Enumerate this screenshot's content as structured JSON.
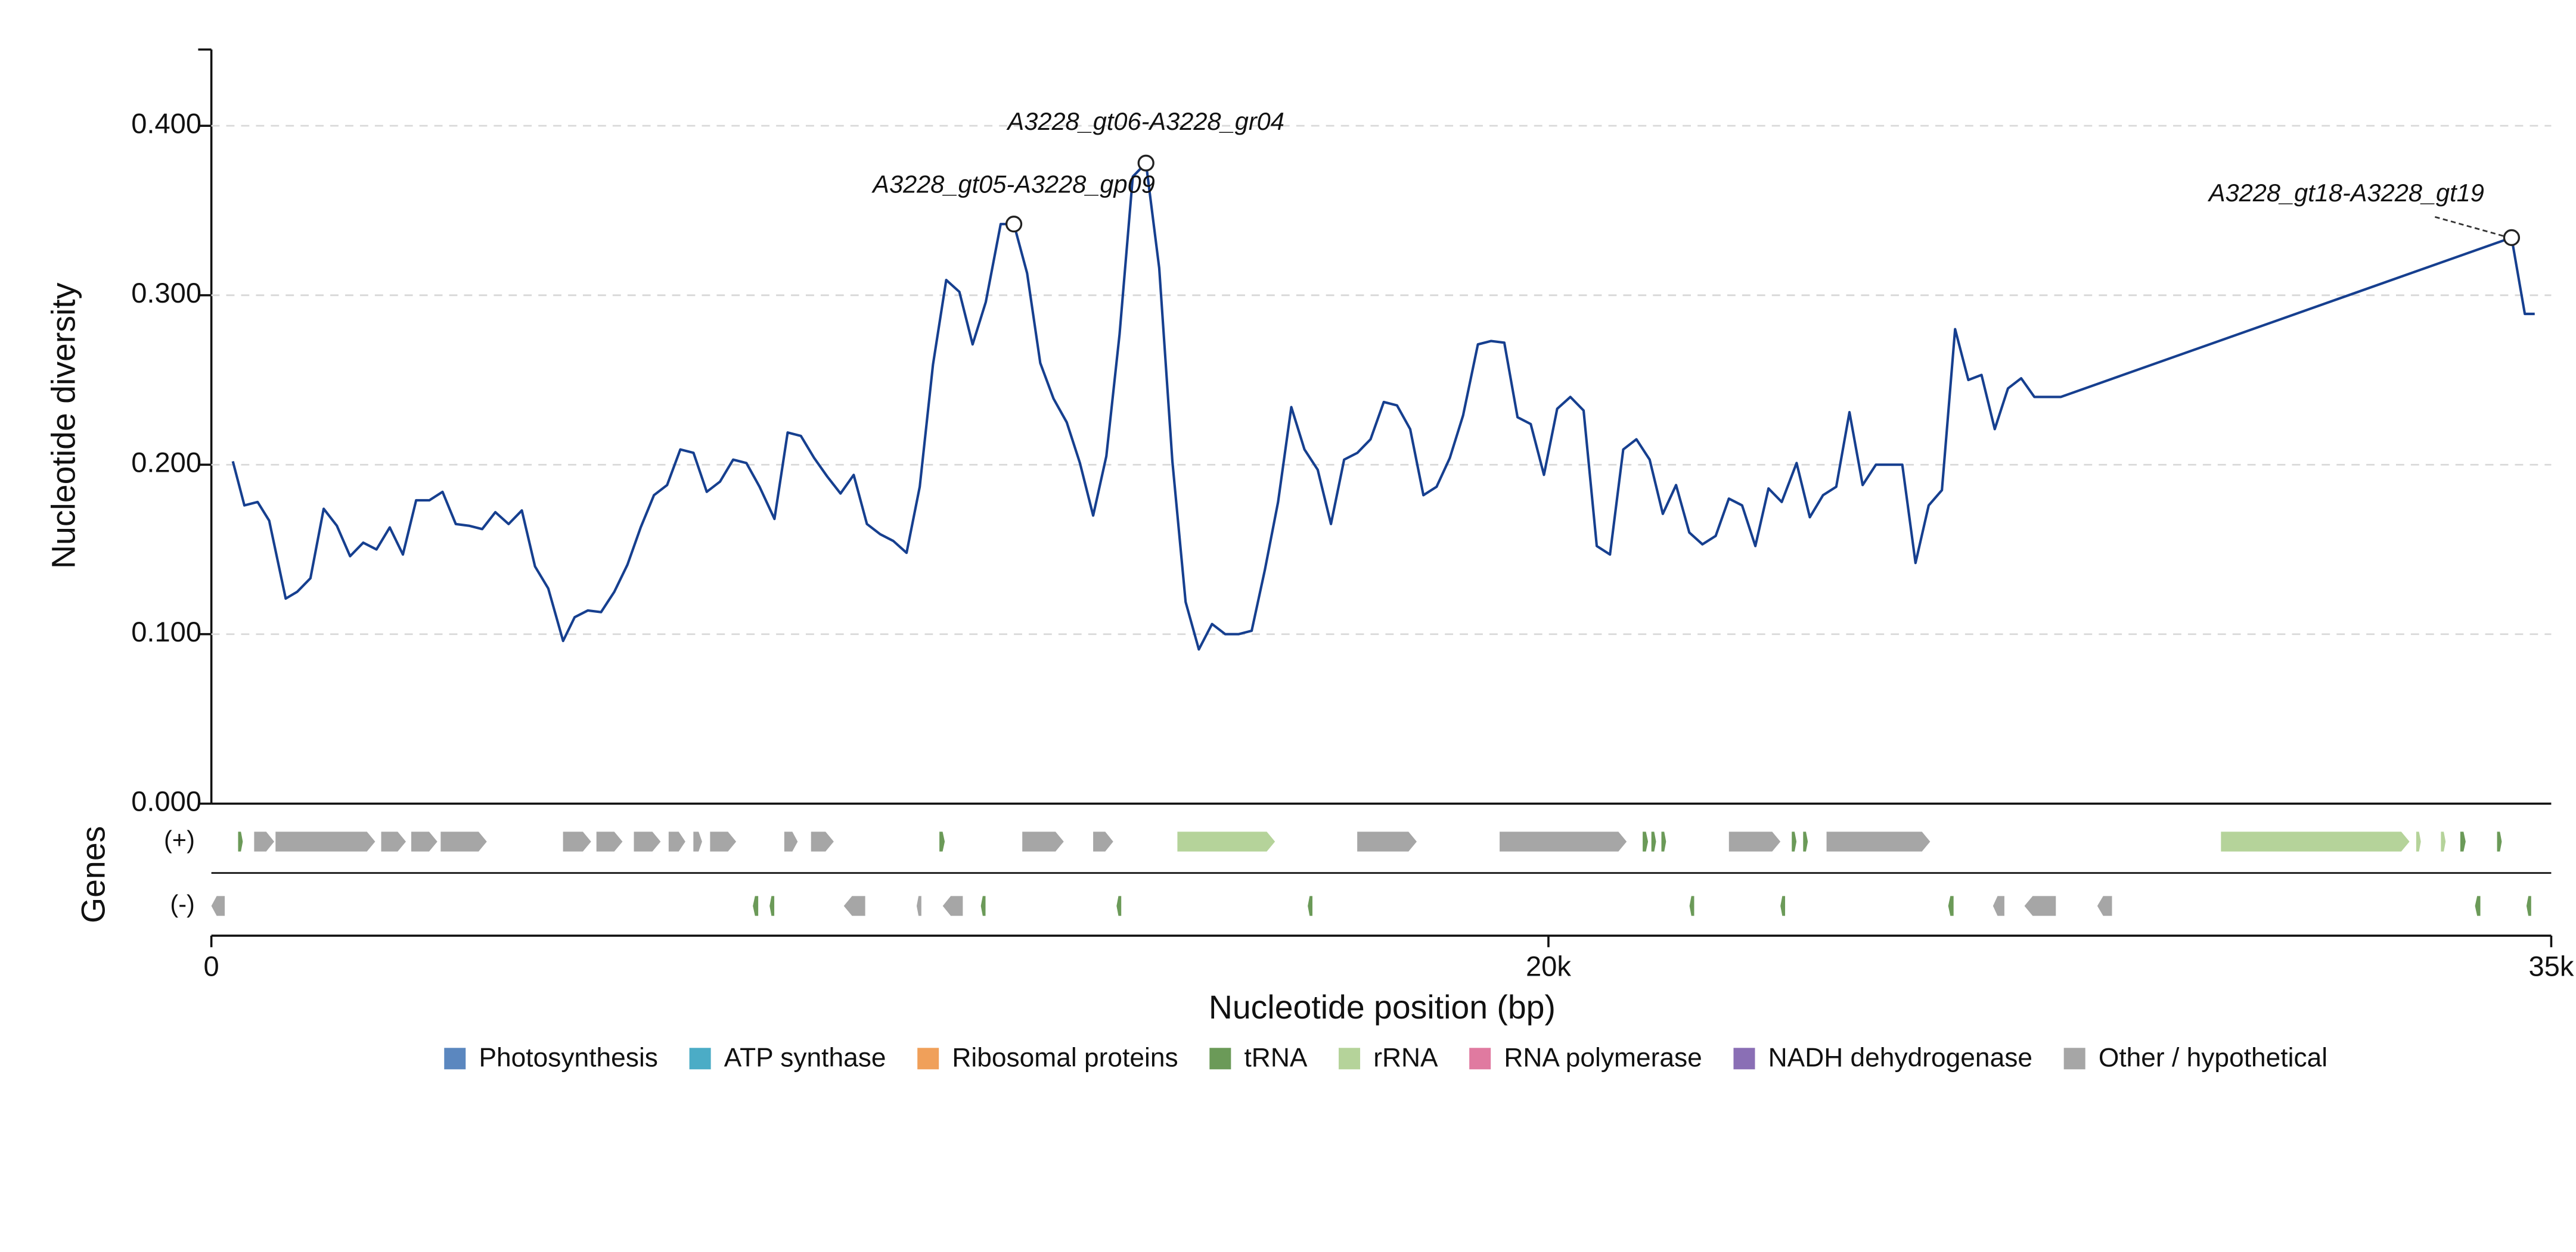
{
  "chart_data": {
    "type": "line",
    "ylabel": "Nucleotide diversity",
    "xlabel": "Nucleotide position (bp)",
    "track_title": "Genes",
    "color": "#163f8f",
    "xlim": [
      0,
      35000
    ],
    "xticks": [
      0,
      {
        "value": 20000,
        "label": "20k"
      },
      {
        "value": 35000,
        "label": "35k"
      }
    ],
    "ylim": [
      0,
      0.445
    ],
    "yticks": [
      {
        "value": 0,
        "label": "0.000"
      },
      {
        "value": 0.1,
        "label": "0.100"
      },
      {
        "value": 0.2,
        "label": "0.200"
      },
      {
        "value": 0.3,
        "label": "0.300"
      },
      {
        "value": 0.4,
        "label": "0.400"
      }
    ],
    "grid": true,
    "x": [
      321,
      494,
      692,
      865,
      1112,
      1284,
      1482,
      1680,
      1877,
      2075,
      2272,
      2470,
      2668,
      2865,
      3063,
      3260,
      3458,
      3656,
      3853,
      4051,
      4248,
      4446,
      4644,
      4841,
      5039,
      5261,
      5434,
      5632,
      5829,
      6027,
      6224,
      6422,
      6620,
      6817,
      7015,
      7212,
      7410,
      7608,
      7805,
      8003,
      8200,
      8423,
      8620,
      8818,
      9016,
      9213,
      9411,
      9608,
      9806,
      10004,
      10201,
      10399,
      10596,
      10794,
      10992,
      11189,
      11387,
      11584,
      11807,
      12004,
      12202,
      12399,
      12597,
      12795,
      12992,
      13190,
      13387,
      13585,
      13783,
      13980,
      14178,
      14375,
      14573,
      14771,
      14968,
      15166,
      15363,
      15561,
      15759,
      15956,
      16154,
      16351,
      16549,
      16747,
      16944,
      17142,
      17339,
      17537,
      17735,
      17932,
      18130,
      18327,
      18525,
      18723,
      18945,
      19143,
      19340,
      19538,
      19735,
      19933,
      20131,
      20328,
      20526,
      20723,
      20921,
      21119,
      21316,
      21514,
      21711,
      21909,
      22107,
      22304,
      22502,
      22699,
      22897,
      23095,
      23292,
      23490,
      23712,
      23910,
      24107,
      24305,
      24503,
      24700,
      24898,
      25095,
      25293,
      25491,
      25688,
      25886,
      26083,
      26281,
      26478,
      26676,
      26874,
      27071,
      27269,
      27466,
      27664,
      34407,
      34605,
      34753
    ],
    "values": [
      0.202,
      0.176,
      0.178,
      0.167,
      0.121,
      0.125,
      0.133,
      0.174,
      0.164,
      0.146,
      0.154,
      0.15,
      0.163,
      0.147,
      0.179,
      0.179,
      0.184,
      0.165,
      0.164,
      0.162,
      0.172,
      0.165,
      0.173,
      0.14,
      0.127,
      0.096,
      0.11,
      0.114,
      0.113,
      0.125,
      0.141,
      0.163,
      0.182,
      0.188,
      0.209,
      0.207,
      0.184,
      0.19,
      0.203,
      0.201,
      0.187,
      0.168,
      0.219,
      0.217,
      0.204,
      0.193,
      0.183,
      0.194,
      0.165,
      0.159,
      0.155,
      0.148,
      0.187,
      0.259,
      0.309,
      0.302,
      0.271,
      0.296,
      0.342,
      0.342,
      0.313,
      0.26,
      0.239,
      0.225,
      0.201,
      0.17,
      0.205,
      0.277,
      0.37,
      0.378,
      0.316,
      0.202,
      0.119,
      0.091,
      0.106,
      0.1,
      0.1,
      0.102,
      0.138,
      0.178,
      0.234,
      0.209,
      0.197,
      0.165,
      0.203,
      0.207,
      0.215,
      0.237,
      0.235,
      0.221,
      0.182,
      0.187,
      0.204,
      0.229,
      0.271,
      0.273,
      0.272,
      0.228,
      0.224,
      0.194,
      0.233,
      0.24,
      0.232,
      0.152,
      0.147,
      0.209,
      0.215,
      0.203,
      0.171,
      0.188,
      0.16,
      0.153,
      0.158,
      0.18,
      0.176,
      0.152,
      0.186,
      0.178,
      0.201,
      0.169,
      0.182,
      0.187,
      0.231,
      0.188,
      0.2,
      0.2,
      0.2,
      0.142,
      0.176,
      0.185,
      0.28,
      0.25,
      0.253,
      0.221,
      0.245,
      0.251,
      0.24,
      0.24,
      0.24,
      0.334,
      0.289,
      0.289
    ],
    "annotations": [
      {
        "text": "A3228_gt05-A3228_gp09",
        "x": 12004,
        "y": 0.342
      },
      {
        "text": "A3228_gt06-A3228_gr04",
        "x": 13980,
        "y": 0.378
      },
      {
        "text": "A3228_gt18-A3228_gt19",
        "x": 34407,
        "y": 0.334
      }
    ],
    "tracks": [
      {
        "label": "(+)",
        "direction": "forward",
        "genes": [
          {
            "start": 400,
            "end": 470,
            "category": "tRNA"
          },
          {
            "start": 640,
            "end": 940,
            "category": "Other / hypothetical"
          },
          {
            "start": 960,
            "end": 2450,
            "category": "Other / hypothetical"
          },
          {
            "start": 2540,
            "end": 2910,
            "category": "Other / hypothetical"
          },
          {
            "start": 2990,
            "end": 3380,
            "category": "Other / hypothetical"
          },
          {
            "start": 3430,
            "end": 4120,
            "category": "Other / hypothetical"
          },
          {
            "start": 5260,
            "end": 5680,
            "category": "Other / hypothetical"
          },
          {
            "start": 5760,
            "end": 6150,
            "category": "Other / hypothetical"
          },
          {
            "start": 6320,
            "end": 6720,
            "category": "Other / hypothetical"
          },
          {
            "start": 6840,
            "end": 7090,
            "category": "Other / hypothetical"
          },
          {
            "start": 7210,
            "end": 7340,
            "category": "Other / hypothetical"
          },
          {
            "start": 7460,
            "end": 7850,
            "category": "Other / hypothetical"
          },
          {
            "start": 8570,
            "end": 8770,
            "category": "Other / hypothetical"
          },
          {
            "start": 8970,
            "end": 9310,
            "category": "Other / hypothetical"
          },
          {
            "start": 10890,
            "end": 10970,
            "category": "tRNA"
          },
          {
            "start": 12130,
            "end": 12750,
            "category": "Other / hypothetical"
          },
          {
            "start": 13190,
            "end": 13490,
            "category": "Other / hypothetical"
          },
          {
            "start": 14450,
            "end": 15910,
            "category": "rRNA"
          },
          {
            "start": 17140,
            "end": 18030,
            "category": "Other / hypothetical"
          },
          {
            "start": 19270,
            "end": 21170,
            "category": "Other / hypothetical"
          },
          {
            "start": 21410,
            "end": 21490,
            "category": "tRNA"
          },
          {
            "start": 21540,
            "end": 21610,
            "category": "tRNA"
          },
          {
            "start": 21690,
            "end": 21760,
            "category": "tRNA"
          },
          {
            "start": 22700,
            "end": 23470,
            "category": "Other / hypothetical"
          },
          {
            "start": 23640,
            "end": 23710,
            "category": "tRNA"
          },
          {
            "start": 23810,
            "end": 23880,
            "category": "tRNA"
          },
          {
            "start": 24160,
            "end": 25710,
            "category": "Other / hypothetical"
          },
          {
            "start": 30060,
            "end": 32880,
            "category": "rRNA"
          },
          {
            "start": 32980,
            "end": 33050,
            "category": "rRNA"
          },
          {
            "start": 33350,
            "end": 33420,
            "category": "rRNA"
          },
          {
            "start": 33640,
            "end": 33720,
            "category": "tRNA"
          },
          {
            "start": 34190,
            "end": 34260,
            "category": "tRNA"
          }
        ]
      },
      {
        "label": "(-)",
        "direction": "reverse",
        "genes": [
          {
            "start": 0,
            "end": 200,
            "category": "Other / hypothetical"
          },
          {
            "start": 8100,
            "end": 8180,
            "category": "tRNA"
          },
          {
            "start": 8350,
            "end": 8420,
            "category": "tRNA"
          },
          {
            "start": 9460,
            "end": 9780,
            "category": "Other / hypothetical"
          },
          {
            "start": 10550,
            "end": 10620,
            "category": "Other / hypothetical"
          },
          {
            "start": 10940,
            "end": 11240,
            "category": "Other / hypothetical"
          },
          {
            "start": 11510,
            "end": 11580,
            "category": "tRNA"
          },
          {
            "start": 13540,
            "end": 13610,
            "category": "tRNA"
          },
          {
            "start": 16400,
            "end": 16470,
            "category": "tRNA"
          },
          {
            "start": 22110,
            "end": 22180,
            "category": "tRNA"
          },
          {
            "start": 23470,
            "end": 23540,
            "category": "tRNA"
          },
          {
            "start": 25980,
            "end": 26060,
            "category": "tRNA"
          },
          {
            "start": 26650,
            "end": 26820,
            "category": "Other / hypothetical"
          },
          {
            "start": 27120,
            "end": 27590,
            "category": "Other / hypothetical"
          },
          {
            "start": 28210,
            "end": 28430,
            "category": "Other / hypothetical"
          },
          {
            "start": 33860,
            "end": 33940,
            "category": "tRNA"
          },
          {
            "start": 34630,
            "end": 34700,
            "category": "tRNA"
          }
        ]
      }
    ],
    "legend_position": "bottom",
    "legend": [
      {
        "name": "Photosynthesis",
        "color": "#5b87bf"
      },
      {
        "name": "ATP synthase",
        "color": "#4bacc6"
      },
      {
        "name": "Ribosomal proteins",
        "color": "#f0a05a"
      },
      {
        "name": "tRNA",
        "color": "#6b9a58"
      },
      {
        "name": "rRNA",
        "color": "#b5d39a"
      },
      {
        "name": "RNA polymerase",
        "color": "#e07aa0"
      },
      {
        "name": "NADH dehydrogenase",
        "color": "#8a6fb5"
      },
      {
        "name": "Other / hypothetical",
        "color": "#a6a6a6"
      }
    ]
  }
}
